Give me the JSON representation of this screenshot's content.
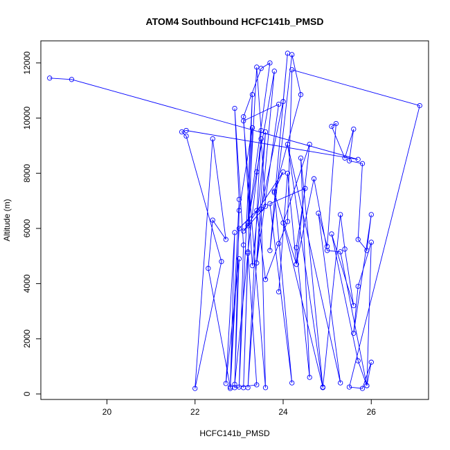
{
  "chart_data": {
    "type": "line",
    "title": "ATOM4 Southbound HCFC141b_PMSD",
    "xlabel": "HCFC141b_PMSD",
    "ylabel": "Altitude (m)",
    "xlim": [
      18.5,
      27.3
    ],
    "ylim": [
      -200,
      12800
    ],
    "xticks": [
      20,
      22,
      24,
      26
    ],
    "yticks": [
      0,
      2000,
      4000,
      6000,
      8000,
      10000,
      12000
    ],
    "grid": false,
    "series_color": "#0000ff",
    "marker": "open-circle",
    "series": [
      {
        "x": [
          18.7,
          19.2,
          25.7,
          21.8,
          21.7,
          21.8,
          22.6,
          22.0,
          22.4,
          22.7,
          22.4,
          22.3,
          22.8,
          23.0,
          22.9,
          23.1,
          23.0,
          23.3,
          23.2,
          23.4,
          23.5,
          23.2,
          23.6,
          23.3,
          23.1,
          23.5,
          23.7,
          23.2,
          23.4,
          23.8,
          23.4,
          23.9,
          23.1,
          23.6,
          23.5,
          24.0,
          24.1,
          23.7,
          24.2,
          24.4,
          23.8,
          24.3,
          24.6,
          24.0,
          24.9,
          24.1,
          25.3,
          24.8,
          25.0,
          25.2,
          25.1,
          25.4,
          25.6,
          25.5,
          25.8,
          25.7,
          25.9,
          26.0,
          25.6,
          25.7,
          26.0,
          25.9,
          26.0,
          25.8,
          25.5,
          27.1,
          24.2,
          24.1,
          23.9,
          23.6,
          23.4,
          23.0,
          22.8,
          22.9,
          22.7,
          23.0,
          22.9,
          23.2,
          23.1,
          23.3,
          23.0,
          22.9,
          23.4,
          23.2,
          23.5,
          23.6,
          23.1,
          24.0,
          23.8,
          24.2,
          23.7,
          24.5,
          24.3,
          24.6,
          24.4,
          24.9,
          25.3,
          25.4,
          25.6,
          25.1,
          25.7,
          25.9,
          25.3,
          25.0,
          24.7,
          24.3,
          24.1,
          23.9
        ],
        "y": [
          11450,
          11400,
          8500,
          9550,
          9500,
          9350,
          4800,
          200,
          9250,
          5600,
          6300,
          4550,
          250,
          7050,
          10350,
          5400,
          250,
          10850,
          6100,
          11850,
          9550,
          230,
          9500,
          4650,
          10050,
          11800,
          12000,
          6200,
          8050,
          11700,
          4750,
          10500,
          9900,
          230,
          6700,
          10600,
          12350,
          5200,
          12300,
          10850,
          7300,
          4700,
          9050,
          6200,
          250,
          9050,
          400,
          6550,
          5350,
          9800,
          9700,
          8550,
          9600,
          8450,
          8350,
          5600,
          5200,
          6500,
          2200,
          3900,
          5500,
          300,
          1150,
          200,
          250,
          10450,
          11750,
          6250,
          5450,
          4150,
          6650,
          6000,
          200,
          5850,
          380,
          4900,
          350,
          5100,
          230,
          9650,
          6650,
          230,
          330,
          5150,
          9250,
          6800,
          5900,
          8050,
          7350,
          400,
          6900,
          7450,
          5300,
          600,
          8550,
          230,
          6500,
          5250,
          3200,
          5800,
          1200,
          300,
          5150,
          5200,
          7800,
          4700,
          8000,
          3700
        ]
      }
    ]
  }
}
